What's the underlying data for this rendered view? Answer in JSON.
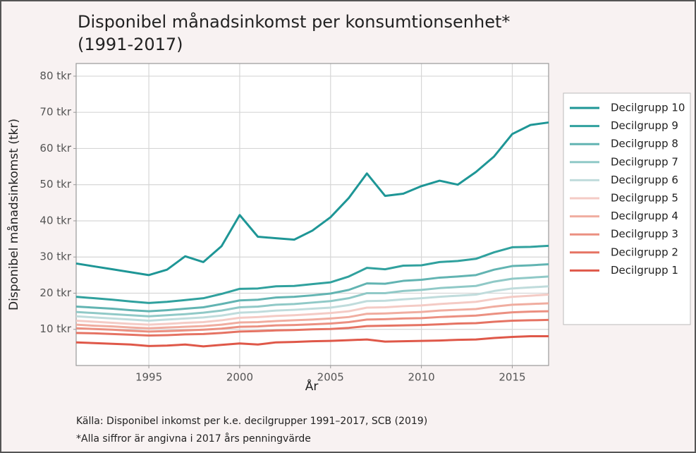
{
  "chart_data": {
    "type": "line",
    "title": [
      "Disponibel månadsinkomst per konsumtionsenhet*",
      "(1991-2017)"
    ],
    "x_label": "År",
    "y_label": "Disponibel månadsinkomst (tkr)",
    "caption": [
      "Källa: Disponibel inkomst per k.e. decilgrupper 1991–2017, SCB (2019)",
      "*Alla siffror är angivna i 2017 års penningvärde"
    ],
    "x": [
      1991,
      1992,
      1993,
      1994,
      1995,
      1996,
      1997,
      1998,
      1999,
      2000,
      2001,
      2002,
      2003,
      2004,
      2005,
      2006,
      2007,
      2008,
      2009,
      2010,
      2011,
      2012,
      2013,
      2014,
      2015,
      2016,
      2017
    ],
    "xlim": [
      1991,
      2017
    ],
    "xticks": [
      1995,
      2000,
      2005,
      2010,
      2015
    ],
    "ylim": [
      0,
      83.5
    ],
    "yticks": [
      {
        "value": 10,
        "label": "10 tkr"
      },
      {
        "value": 20,
        "label": "20 tkr"
      },
      {
        "value": 30,
        "label": "30 tkr"
      },
      {
        "value": 40,
        "label": "40 tkr"
      },
      {
        "value": 50,
        "label": "50 tkr"
      },
      {
        "value": 60,
        "label": "60 tkr"
      },
      {
        "value": 70,
        "label": "70 tkr"
      },
      {
        "value": 80,
        "label": "80 tkr"
      }
    ],
    "grid": true,
    "legend": "right",
    "series": [
      {
        "name": "Decilgrupp 10",
        "color": "#1e9696",
        "values": [
          28.2,
          27.4,
          26.6,
          25.8,
          25.0,
          26.5,
          30.2,
          28.6,
          33.0,
          41.6,
          35.6,
          35.2,
          34.8,
          37.3,
          41.0,
          46.3,
          53.1,
          46.9,
          47.5,
          49.6,
          51.1,
          50.0,
          53.5,
          57.8,
          64.0,
          66.5,
          67.2
        ]
      },
      {
        "name": "Decilgrupp 9",
        "color": "#30a19e",
        "values": [
          19.0,
          18.6,
          18.2,
          17.7,
          17.3,
          17.6,
          18.1,
          18.6,
          19.8,
          21.2,
          21.3,
          21.9,
          22.0,
          22.5,
          23.0,
          24.6,
          27.0,
          26.6,
          27.6,
          27.7,
          28.6,
          28.9,
          29.5,
          31.3,
          32.7,
          32.8,
          33.1
        ]
      },
      {
        "name": "Decilgrupp 8",
        "color": "#62b4b2",
        "values": [
          16.3,
          16.0,
          15.7,
          15.3,
          15.0,
          15.3,
          15.7,
          16.1,
          17.0,
          18.0,
          18.2,
          18.8,
          19.0,
          19.4,
          19.9,
          20.9,
          22.7,
          22.6,
          23.4,
          23.7,
          24.3,
          24.6,
          25.0,
          26.5,
          27.5,
          27.7,
          28.0
        ]
      },
      {
        "name": "Decilgrupp 7",
        "color": "#90c9c7",
        "values": [
          14.8,
          14.5,
          14.2,
          13.9,
          13.6,
          13.9,
          14.2,
          14.6,
          15.2,
          16.1,
          16.3,
          16.8,
          17.0,
          17.4,
          17.8,
          18.6,
          20.0,
          20.0,
          20.6,
          20.9,
          21.4,
          21.7,
          22.0,
          23.2,
          24.0,
          24.3,
          24.6
        ]
      },
      {
        "name": "Decilgrupp 6",
        "color": "#c0dcdc",
        "values": [
          13.6,
          13.3,
          13.0,
          12.7,
          12.4,
          12.7,
          13.0,
          13.3,
          13.8,
          14.6,
          14.8,
          15.2,
          15.4,
          15.7,
          16.0,
          16.7,
          17.8,
          17.9,
          18.3,
          18.6,
          19.0,
          19.3,
          19.6,
          20.6,
          21.3,
          21.6,
          21.9
        ]
      },
      {
        "name": "Decilgrupp 5",
        "color": "#f4cbc5",
        "values": [
          12.4,
          12.1,
          11.8,
          11.5,
          11.3,
          11.5,
          11.8,
          12.0,
          12.5,
          13.2,
          13.4,
          13.7,
          13.9,
          14.2,
          14.5,
          15.0,
          16.0,
          16.1,
          16.4,
          16.6,
          17.0,
          17.3,
          17.6,
          18.4,
          19.0,
          19.3,
          19.6
        ]
      },
      {
        "name": "Decilgrupp 4",
        "color": "#f0ad a0",
        "values": [
          11.3,
          11.0,
          10.8,
          10.5,
          10.3,
          10.5,
          10.7,
          10.9,
          11.3,
          11.9,
          12.0,
          12.3,
          12.5,
          12.7,
          13.0,
          13.4,
          14.3,
          14.4,
          14.6,
          14.8,
          15.2,
          15.4,
          15.6,
          16.3,
          16.8,
          17.0,
          17.2
        ]
      },
      {
        "name": "Decilgrupp 3",
        "color": "#eb9081",
        "values": [
          10.3,
          10.1,
          9.9,
          9.6,
          9.4,
          9.5,
          9.7,
          9.9,
          10.2,
          10.7,
          10.8,
          11.1,
          11.2,
          11.4,
          11.6,
          12.0,
          12.7,
          12.8,
          13.0,
          13.1,
          13.4,
          13.6,
          13.8,
          14.3,
          14.7,
          14.9,
          15.0
        ]
      },
      {
        "name": "Decilgrupp 2",
        "color": "#e57363",
        "values": [
          9.0,
          8.9,
          8.7,
          8.5,
          8.3,
          8.4,
          8.6,
          8.7,
          9.0,
          9.4,
          9.5,
          9.7,
          9.8,
          10.0,
          10.1,
          10.4,
          10.9,
          11.0,
          11.1,
          11.2,
          11.4,
          11.6,
          11.7,
          12.1,
          12.4,
          12.5,
          12.6
        ]
      },
      {
        "name": "Decilgrupp 1",
        "color": "#df5849",
        "values": [
          6.4,
          6.2,
          6.0,
          5.8,
          5.4,
          5.5,
          5.8,
          5.3,
          5.7,
          6.1,
          5.8,
          6.4,
          6.5,
          6.7,
          6.8,
          7.0,
          7.2,
          6.6,
          6.7,
          6.8,
          6.9,
          7.1,
          7.2,
          7.6,
          7.9,
          8.1,
          8.1
        ]
      }
    ]
  }
}
